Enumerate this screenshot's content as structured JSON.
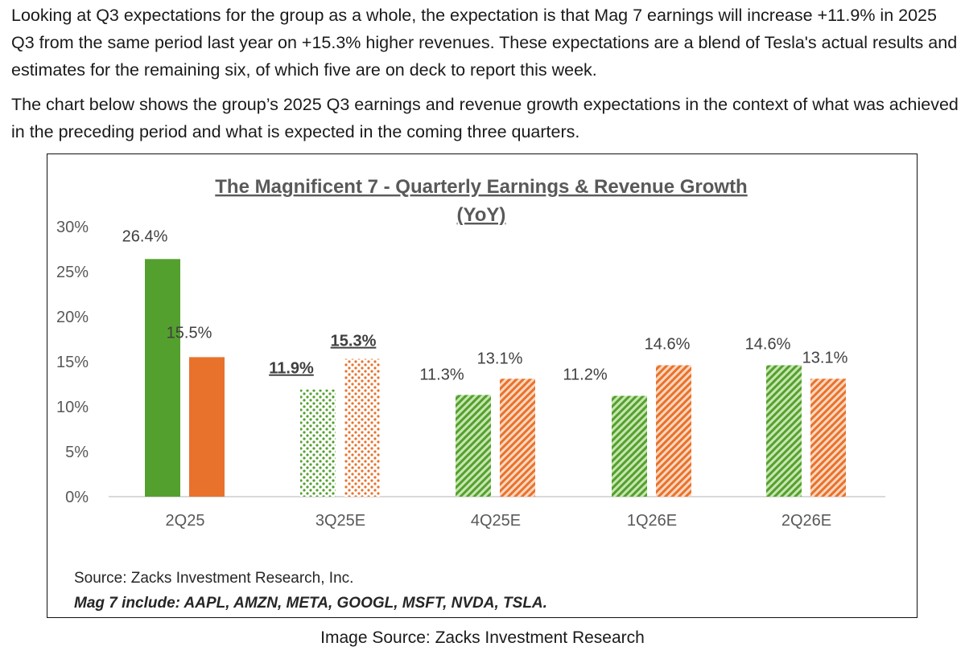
{
  "paragraphs": [
    "Looking at Q3 expectations for the group as a whole, the expectation is that Mag 7 earnings will increase +11.9% in 2025 Q3 from the same period last year on +15.3% higher revenues. These expectations are a blend of Tesla's actual results and estimates for the remaining six, of which five are on deck to report this week.",
    "The chart below shows the group’s 2025 Q3 earnings and revenue growth expectations in the context of what was achieved in the preceding period and what is expected in the coming three quarters."
  ],
  "chart_data": {
    "type": "bar",
    "title": "The Magnificent 7 - Quarterly Earnings & Revenue Growth",
    "subtitle": "(YoY)",
    "xlabel": "",
    "ylabel": "",
    "ylim": [
      0,
      30
    ],
    "yticks": [
      "0%",
      "5%",
      "10%",
      "15%",
      "20%",
      "25%",
      "30%"
    ],
    "categories": [
      "2Q25",
      "3Q25E",
      "4Q25E",
      "1Q26E",
      "2Q26E"
    ],
    "series": [
      {
        "name": "Earnings Growth",
        "color": "#54a02f",
        "values": [
          26.4,
          11.9,
          11.3,
          11.2,
          14.6
        ],
        "labels": [
          "26.4%",
          "11.9%",
          "11.3%",
          "11.2%",
          "14.6%"
        ]
      },
      {
        "name": "Revenue Growth",
        "color": "#e8722c",
        "values": [
          15.5,
          15.3,
          13.1,
          14.6,
          13.1
        ],
        "labels": [
          "15.5%",
          "15.3%",
          "13.1%",
          "14.6%",
          "13.1%"
        ]
      }
    ],
    "fills": [
      "solid",
      "dots",
      "stripes",
      "stripes",
      "stripes"
    ],
    "emphasized_category": "3Q25E",
    "grid": false,
    "source": "Source: Zacks Investment Research, Inc.",
    "note": "Mag 7 include: AAPL, AMZN, META, GOOGL, MSFT, NVDA, TSLA."
  },
  "caption": "Image Source: Zacks Investment Research"
}
